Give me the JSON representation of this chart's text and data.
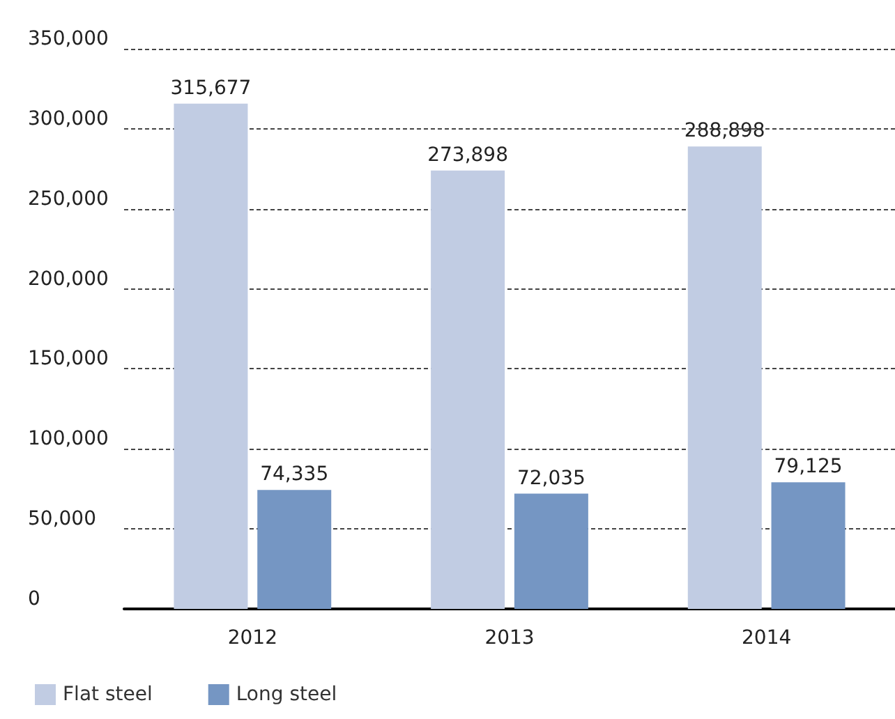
{
  "chart_data": {
    "type": "bar",
    "categories": [
      "2012",
      "2013",
      "2014"
    ],
    "series": [
      {
        "name": "Flat steel",
        "color": "#c1cce3",
        "values": [
          315677,
          273898,
          288898
        ],
        "value_labels": [
          "315,677",
          "273,898",
          "288,898"
        ]
      },
      {
        "name": "Long steel",
        "color": "#7596c3",
        "values": [
          74335,
          72035,
          79125
        ],
        "value_labels": [
          "74,335",
          "72,035",
          "79,125"
        ]
      }
    ],
    "ylim": [
      0,
      350000
    ],
    "yticks": [
      0,
      {
        "value": 50000,
        "label": "50,000"
      },
      {
        "value": 100000,
        "label": "100,000"
      },
      {
        "value": 150000,
        "label": "150,000"
      },
      {
        "value": 200000,
        "label": "200,000"
      },
      {
        "value": 250000,
        "label": "250,000"
      },
      {
        "value": 300000,
        "label": "300,000"
      },
      {
        "value": 350000,
        "label": "350,000"
      }
    ],
    "grid": "y",
    "legend": "bottom left"
  }
}
